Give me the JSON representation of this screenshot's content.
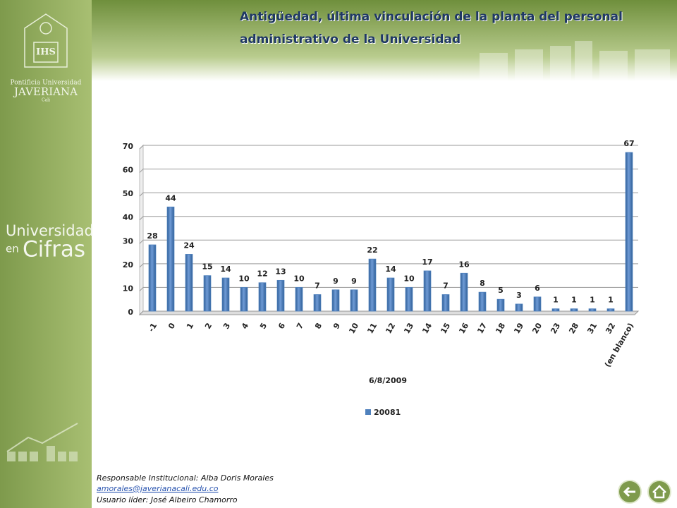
{
  "header": {
    "title": [
      "Antigüedad, última vinculación de la planta del  personal",
      "administrativo de la Universidad"
    ]
  },
  "sidebar": {
    "logo": [
      "Pontificia Universidad",
      "JAVERIANA",
      "Cali"
    ],
    "brand": [
      "Universidad",
      "en",
      "Cifras"
    ]
  },
  "chart_data": {
    "type": "bar",
    "x_label": "6/8/2009",
    "categories": [
      "-1",
      "0",
      "1",
      "2",
      "3",
      "4",
      "5",
      "6",
      "7",
      "8",
      "9",
      "10",
      "11",
      "12",
      "13",
      "14",
      "15",
      "16",
      "17",
      "18",
      "19",
      "20",
      "23",
      "28",
      "31",
      "32",
      "(en blanco)"
    ],
    "series": [
      {
        "name": "20081",
        "color": "#4f81bd",
        "values": [
          28,
          44,
          24,
          15,
          14,
          10,
          12,
          13,
          10,
          7,
          9,
          9,
          22,
          14,
          10,
          17,
          7,
          16,
          8,
          5,
          3,
          6,
          1,
          1,
          1,
          1,
          67
        ]
      }
    ],
    "ylim": [
      0,
      70
    ],
    "yticks": [
      0,
      10,
      20,
      30,
      40,
      50,
      60,
      70
    ],
    "grid": true,
    "legend": "bottom"
  },
  "footer": {
    "responsible": "Responsable Institucional: Alba Doris Morales",
    "email": "amorales@javerianacali.edu.co",
    "leader": "Usuario líder: José Albeiro Chamorro"
  }
}
